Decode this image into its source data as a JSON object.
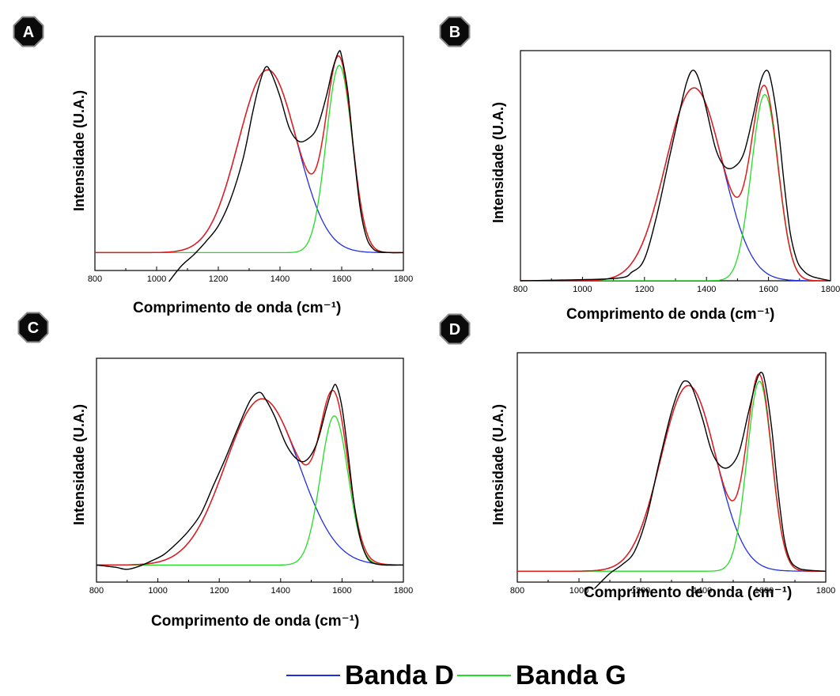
{
  "legend": {
    "items": [
      {
        "label": "Banda D",
        "color": "#1f2fe0"
      },
      {
        "label": "Banda G",
        "color": "#22dd22"
      }
    ]
  },
  "colors": {
    "experimental": "#000000",
    "fit": "#e21b1b",
    "band_d": "#1f2fe0",
    "band_g": "#22dd22"
  },
  "chart_data": [
    {
      "panel": "A",
      "type": "line",
      "xlabel": "Comprimento de onda (cm⁻¹)",
      "ylabel": "Intensidade (U.A.)",
      "xlim": [
        800,
        1800
      ],
      "xticks": [
        800,
        1000,
        1200,
        1400,
        1600,
        1800
      ],
      "ylim": [
        0,
        1.05
      ],
      "baseline": 0.08,
      "bands": {
        "D": {
          "center": 1360,
          "height": 0.82,
          "width": 95
        },
        "G": {
          "center": 1592,
          "height": 0.84,
          "width": 42
        }
      },
      "experimental": [
        [
          1040,
          -0.05
        ],
        [
          1080,
          0.02
        ],
        [
          1120,
          0.07
        ],
        [
          1160,
          0.13
        ],
        [
          1200,
          0.2
        ],
        [
          1240,
          0.32
        ],
        [
          1280,
          0.5
        ],
        [
          1310,
          0.7
        ],
        [
          1330,
          0.82
        ],
        [
          1352,
          0.91
        ],
        [
          1370,
          0.89
        ],
        [
          1400,
          0.78
        ],
        [
          1430,
          0.64
        ],
        [
          1460,
          0.58
        ],
        [
          1490,
          0.59
        ],
        [
          1520,
          0.64
        ],
        [
          1550,
          0.78
        ],
        [
          1570,
          0.9
        ],
        [
          1590,
          0.98
        ],
        [
          1600,
          0.96
        ],
        [
          1620,
          0.8
        ],
        [
          1640,
          0.52
        ],
        [
          1660,
          0.28
        ],
        [
          1680,
          0.15
        ],
        [
          1700,
          0.1
        ],
        [
          1720,
          0.085
        ],
        [
          1760,
          0.08
        ],
        [
          1800,
          0.08
        ]
      ]
    },
    {
      "panel": "B",
      "type": "line",
      "xlabel": "Comprimento de onda (cm⁻¹)",
      "ylabel": "Intensidade (U.A.)",
      "xlim": [
        800,
        1800
      ],
      "xticks": [
        800,
        1000,
        1200,
        1400,
        1600,
        1800
      ],
      "ylim": [
        0,
        1.05
      ],
      "baseline": 0.0,
      "bands": {
        "D": {
          "center": 1360,
          "height": 0.88,
          "width": 92
        },
        "G": {
          "center": 1588,
          "height": 0.85,
          "width": 43
        }
      },
      "experimental": [
        [
          800,
          0.0
        ],
        [
          1100,
          0.01
        ],
        [
          1160,
          0.04
        ],
        [
          1200,
          0.1
        ],
        [
          1240,
          0.3
        ],
        [
          1280,
          0.56
        ],
        [
          1310,
          0.75
        ],
        [
          1335,
          0.9
        ],
        [
          1355,
          0.96
        ],
        [
          1375,
          0.92
        ],
        [
          1400,
          0.78
        ],
        [
          1430,
          0.6
        ],
        [
          1460,
          0.52
        ],
        [
          1490,
          0.52
        ],
        [
          1520,
          0.58
        ],
        [
          1550,
          0.75
        ],
        [
          1575,
          0.91
        ],
        [
          1595,
          0.96
        ],
        [
          1610,
          0.9
        ],
        [
          1630,
          0.72
        ],
        [
          1650,
          0.45
        ],
        [
          1670,
          0.22
        ],
        [
          1690,
          0.1
        ],
        [
          1710,
          0.05
        ],
        [
          1740,
          0.02
        ],
        [
          1800,
          0.0
        ]
      ]
    },
    {
      "panel": "C",
      "type": "line",
      "xlabel": "Comprimento de onda (cm⁻¹)",
      "ylabel": "Intensidade (U.A.)",
      "xlim": [
        800,
        1800
      ],
      "xticks": [
        800,
        1000,
        1200,
        1400,
        1600,
        1800
      ],
      "ylim": [
        0,
        1.05
      ],
      "baseline": 0.08,
      "bands": {
        "D": {
          "center": 1340,
          "height": 0.78,
          "width": 120
        },
        "G": {
          "center": 1575,
          "height": 0.7,
          "width": 45
        }
      },
      "experimental": [
        [
          800,
          0.08
        ],
        [
          860,
          0.07
        ],
        [
          900,
          0.06
        ],
        [
          940,
          0.075
        ],
        [
          980,
          0.1
        ],
        [
          1020,
          0.13
        ],
        [
          1060,
          0.18
        ],
        [
          1100,
          0.24
        ],
        [
          1140,
          0.32
        ],
        [
          1180,
          0.45
        ],
        [
          1220,
          0.58
        ],
        [
          1260,
          0.72
        ],
        [
          1300,
          0.85
        ],
        [
          1330,
          0.89
        ],
        [
          1350,
          0.86
        ],
        [
          1380,
          0.78
        ],
        [
          1420,
          0.64
        ],
        [
          1460,
          0.57
        ],
        [
          1490,
          0.58
        ],
        [
          1520,
          0.66
        ],
        [
          1550,
          0.82
        ],
        [
          1570,
          0.91
        ],
        [
          1582,
          0.92
        ],
        [
          1600,
          0.82
        ],
        [
          1620,
          0.6
        ],
        [
          1640,
          0.36
        ],
        [
          1660,
          0.2
        ],
        [
          1680,
          0.12
        ],
        [
          1700,
          0.09
        ],
        [
          1740,
          0.08
        ],
        [
          1800,
          0.08
        ]
      ]
    },
    {
      "panel": "D",
      "type": "line",
      "xlabel": "Comprimento de onda (cm⁻¹)",
      "ylabel": "Intensidade (U.A.)",
      "xlim": [
        800,
        1800
      ],
      "xticks": [
        800,
        1000,
        1200,
        1400,
        1600,
        1800
      ],
      "ylim": [
        0,
        1.05
      ],
      "baseline": 0.05,
      "bands": {
        "D": {
          "center": 1355,
          "height": 0.85,
          "width": 90
        },
        "G": {
          "center": 1585,
          "height": 0.87,
          "width": 40
        }
      },
      "experimental": [
        [
          1050,
          -0.03
        ],
        [
          1100,
          0.04
        ],
        [
          1140,
          0.08
        ],
        [
          1180,
          0.14
        ],
        [
          1220,
          0.3
        ],
        [
          1260,
          0.55
        ],
        [
          1300,
          0.78
        ],
        [
          1330,
          0.9
        ],
        [
          1350,
          0.92
        ],
        [
          1370,
          0.88
        ],
        [
          1400,
          0.75
        ],
        [
          1430,
          0.6
        ],
        [
          1460,
          0.53
        ],
        [
          1490,
          0.53
        ],
        [
          1520,
          0.6
        ],
        [
          1550,
          0.78
        ],
        [
          1575,
          0.92
        ],
        [
          1592,
          0.96
        ],
        [
          1605,
          0.9
        ],
        [
          1625,
          0.7
        ],
        [
          1645,
          0.42
        ],
        [
          1665,
          0.2
        ],
        [
          1685,
          0.1
        ],
        [
          1710,
          0.065
        ],
        [
          1740,
          0.055
        ],
        [
          1800,
          0.05
        ]
      ]
    }
  ]
}
